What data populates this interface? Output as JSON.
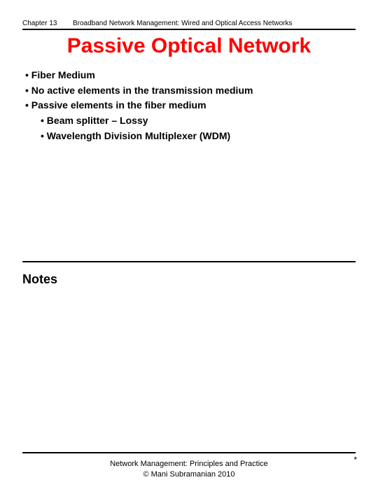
{
  "header": {
    "chapter": "Chapter 13",
    "title": "Broadband Network Management: Wired and Optical Access Networks"
  },
  "slide": {
    "title": "Passive Optical Network",
    "title_color": "#ff0000",
    "bullets": {
      "b1": "• Fiber Medium",
      "b2": "• No active elements in the transmission medium",
      "b3": "• Passive elements in the fiber medium",
      "b3_1": "• Beam splitter – Lossy",
      "b3_2": "• Wavelength Division Multiplexer (WDM)"
    }
  },
  "notes": {
    "heading": "Notes"
  },
  "footer": {
    "line1": "Network Management: Principles and Practice",
    "line2": "©  Mani Subramanian 2010",
    "mark": "*"
  },
  "style": {
    "background_color": "#ffffff",
    "text_color": "#000000",
    "rule_color": "#000000",
    "title_fontsize": 30,
    "body_fontsize": 14,
    "header_fontsize": 10,
    "footer_fontsize": 11
  }
}
